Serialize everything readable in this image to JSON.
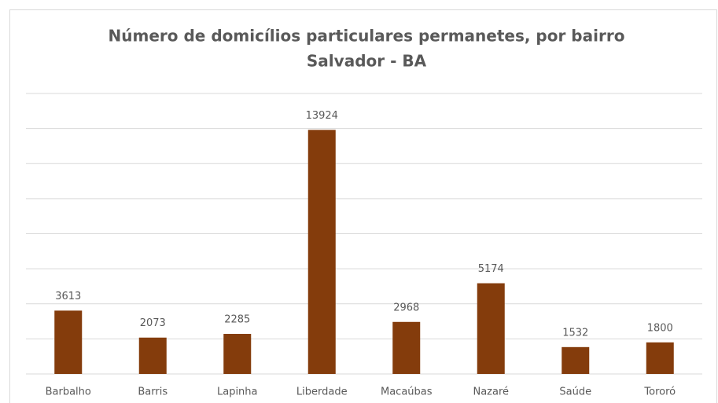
{
  "chart_data": {
    "type": "bar",
    "title": [
      "Número de domicílios particulares permanetes, por bairro",
      "Salvador - BA"
    ],
    "categories": [
      "Barbalho",
      "Barris",
      "Lapinha",
      "Liberdade",
      "Macaúbas",
      "Nazaré",
      "Saúde",
      "Tororó"
    ],
    "values": [
      3613,
      2073,
      2285,
      13924,
      2968,
      5174,
      1532,
      1800
    ],
    "color": "#843c0c",
    "ylim": [
      0,
      16000
    ],
    "yticks": [
      0,
      2000,
      4000,
      6000,
      8000,
      10000,
      12000,
      14000,
      16000
    ],
    "grid": true
  }
}
